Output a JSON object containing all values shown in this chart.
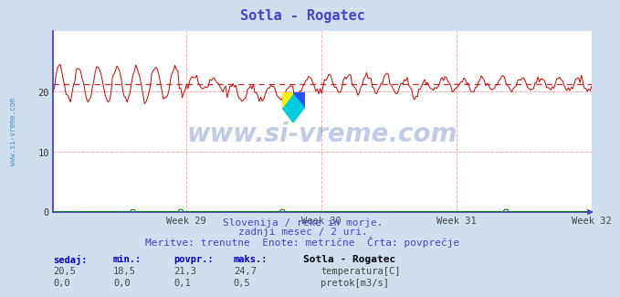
{
  "title": "Sotla - Rogatec",
  "title_color": "#4444cc",
  "bg_color": "#d0dff0",
  "plot_bg_color": "#ffffff",
  "grid_color": "#ffaaaa",
  "axis_color": "#4444cc",
  "temp_line_color": "#cc0000",
  "flow_line_color": "#008800",
  "avg_line_color": "#cc0000",
  "avg_value": 21.3,
  "temp_min": 18.5,
  "temp_max": 24.7,
  "flow_max": 0.5,
  "ylabel_ticks": [
    0,
    10,
    20
  ],
  "ylim": [
    0,
    30
  ],
  "n_points": 372,
  "xlabel_weeks": [
    "Week 29",
    "Week 30",
    "Week 31",
    "Week 32"
  ],
  "subtitle1": "Slovenija / reke in morje.",
  "subtitle2": "zadnji mesec / 2 uri.",
  "subtitle3": "Meritve: trenutne  Enote: metrične  Črta: povprečje",
  "subtitle_color": "#4444cc",
  "watermark": "www.si-vreme.com",
  "watermark_color": "#3355aa",
  "sidebar_text": "www.si-vreme.com",
  "sidebar_color": "#3388bb",
  "legend_title": "Sotla - Rogatec",
  "legend_temp_label": "temperatura[C]",
  "legend_flow_label": "pretok[m3/s]",
  "stats_headers": [
    "sedaj:",
    "min.:",
    "povpr.:",
    "maks.:"
  ],
  "stats_temp": [
    "20,5",
    "18,5",
    "21,3",
    "24,7"
  ],
  "stats_flow": [
    "0,0",
    "0,0",
    "0,1",
    "0,5"
  ],
  "icon_yellow": "#ffee00",
  "icon_blue": "#2255ff",
  "icon_cyan": "#00ccdd"
}
